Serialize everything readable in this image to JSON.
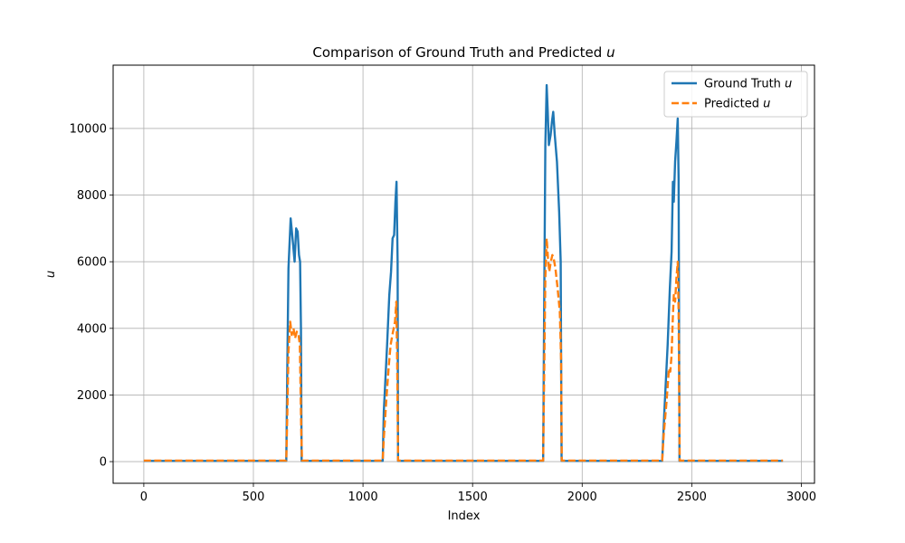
{
  "chart_data": {
    "type": "line",
    "title": "Comparison of Ground Truth and Predicted u",
    "xlabel": "Index",
    "ylabel": "u",
    "xlim": [
      -140,
      3060
    ],
    "ylim": [
      -650,
      11900
    ],
    "xticks": [
      0,
      500,
      1000,
      1500,
      2000,
      2500,
      3000
    ],
    "yticks": [
      0,
      2000,
      4000,
      6000,
      8000,
      10000
    ],
    "grid": true,
    "legend_position": "top-right",
    "series": [
      {
        "name": "Ground Truth u",
        "color": "#1f77b4",
        "style": "solid",
        "points": [
          [
            0,
            20
          ],
          [
            650,
            20
          ],
          [
            655,
            3000
          ],
          [
            660,
            5800
          ],
          [
            670,
            7300
          ],
          [
            680,
            6600
          ],
          [
            688,
            6000
          ],
          [
            695,
            7000
          ],
          [
            702,
            6900
          ],
          [
            708,
            6200
          ],
          [
            713,
            6000
          ],
          [
            717,
            4000
          ],
          [
            720,
            20
          ],
          [
            1000,
            20
          ],
          [
            1090,
            20
          ],
          [
            1095,
            1500
          ],
          [
            1110,
            3500
          ],
          [
            1120,
            5000
          ],
          [
            1128,
            5700
          ],
          [
            1135,
            6700
          ],
          [
            1142,
            6800
          ],
          [
            1148,
            7800
          ],
          [
            1153,
            8400
          ],
          [
            1158,
            6000
          ],
          [
            1160,
            20
          ],
          [
            1800,
            20
          ],
          [
            1822,
            20
          ],
          [
            1826,
            4000
          ],
          [
            1832,
            9500
          ],
          [
            1838,
            11300
          ],
          [
            1843,
            10500
          ],
          [
            1848,
            9500
          ],
          [
            1856,
            9800
          ],
          [
            1862,
            10200
          ],
          [
            1868,
            10500
          ],
          [
            1875,
            9800
          ],
          [
            1885,
            9000
          ],
          [
            1895,
            7500
          ],
          [
            1902,
            6000
          ],
          [
            1906,
            20
          ],
          [
            2350,
            20
          ],
          [
            2365,
            20
          ],
          [
            2375,
            1500
          ],
          [
            2390,
            3500
          ],
          [
            2400,
            5200
          ],
          [
            2408,
            6300
          ],
          [
            2414,
            8400
          ],
          [
            2418,
            7800
          ],
          [
            2424,
            9000
          ],
          [
            2430,
            9600
          ],
          [
            2436,
            10300
          ],
          [
            2440,
            8500
          ],
          [
            2444,
            20
          ],
          [
            2916,
            20
          ]
        ]
      },
      {
        "name": "Predicted u",
        "color": "#ff7f0e",
        "style": "dashed",
        "points": [
          [
            0,
            30
          ],
          [
            650,
            30
          ],
          [
            655,
            1500
          ],
          [
            660,
            3300
          ],
          [
            668,
            4200
          ],
          [
            675,
            3800
          ],
          [
            683,
            4000
          ],
          [
            690,
            3700
          ],
          [
            698,
            3900
          ],
          [
            706,
            3800
          ],
          [
            712,
            3500
          ],
          [
            718,
            1000
          ],
          [
            722,
            30
          ],
          [
            1000,
            30
          ],
          [
            1090,
            30
          ],
          [
            1095,
            700
          ],
          [
            1108,
            2000
          ],
          [
            1118,
            2900
          ],
          [
            1126,
            3500
          ],
          [
            1134,
            3800
          ],
          [
            1140,
            4000
          ],
          [
            1146,
            4200
          ],
          [
            1152,
            4800
          ],
          [
            1156,
            3000
          ],
          [
            1160,
            30
          ],
          [
            1800,
            30
          ],
          [
            1822,
            30
          ],
          [
            1826,
            2200
          ],
          [
            1832,
            5500
          ],
          [
            1838,
            6700
          ],
          [
            1844,
            6100
          ],
          [
            1850,
            5700
          ],
          [
            1857,
            6000
          ],
          [
            1864,
            6200
          ],
          [
            1870,
            6100
          ],
          [
            1878,
            5800
          ],
          [
            1888,
            5200
          ],
          [
            1898,
            4500
          ],
          [
            1904,
            3000
          ],
          [
            1907,
            30
          ],
          [
            2350,
            30
          ],
          [
            2365,
            30
          ],
          [
            2372,
            800
          ],
          [
            2385,
            1800
          ],
          [
            2396,
            2800
          ],
          [
            2402,
            2700
          ],
          [
            2408,
            3200
          ],
          [
            2413,
            4200
          ],
          [
            2418,
            5000
          ],
          [
            2424,
            4800
          ],
          [
            2430,
            5500
          ],
          [
            2436,
            6000
          ],
          [
            2440,
            4500
          ],
          [
            2445,
            30
          ],
          [
            2916,
            30
          ]
        ]
      }
    ]
  }
}
